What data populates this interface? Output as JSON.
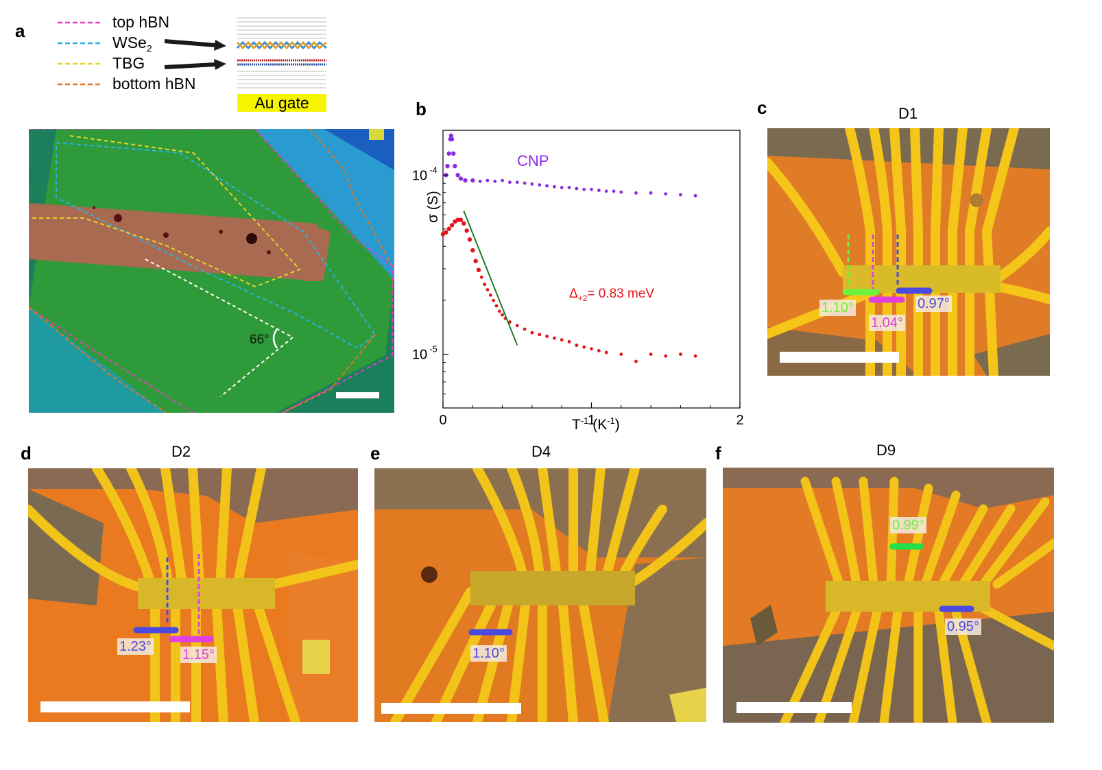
{
  "panels": {
    "a": "a",
    "b": "b",
    "c": "c",
    "d": "d",
    "e": "e",
    "f": "f"
  },
  "legend": {
    "top_hbn": "top hBN",
    "wse2_base": "WSe",
    "wse2_sub": "2",
    "tbg": "TBG",
    "bottom_hbn": "bottom hBN",
    "au_gate": "Au gate"
  },
  "colors": {
    "top_hbn": "#e23fc0",
    "wse2": "#2ab3e0",
    "tbg": "#e8d22a",
    "bottom_hbn": "#e8761e",
    "cnp_curve": "#8a2be2",
    "gap_curve": "#e3131b",
    "fit_line": "#1e7d2a"
  },
  "panel_a": {
    "angle_label": "66°"
  },
  "chart_data": {
    "type": "scatter",
    "title": "",
    "xlabel_base": "T",
    "xlabel_sup": "-1",
    "xlabel_unit": " (K",
    "xlabel_unit_sup": "-1",
    "xlabel_close": ")",
    "ylabel": "σ (S)",
    "xlim": [
      0,
      2
    ],
    "ylim_log10": [
      -5.3,
      -3.75
    ],
    "x_ticks": [
      "0",
      "1",
      "2"
    ],
    "y_ticks": [
      {
        "base": "10",
        "exp": "-4",
        "value": -4
      },
      {
        "base": "10",
        "exp": "-5",
        "value": -5
      }
    ],
    "annotations": {
      "cnp": "CNP",
      "gap_prefix": "Δ",
      "gap_sub": "+2",
      "gap_value": "= 0.83 meV"
    },
    "series": [
      {
        "name": "CNP",
        "points": [
          [
            0.02,
            -4.0
          ],
          [
            0.03,
            -3.95
          ],
          [
            0.04,
            -3.88
          ],
          [
            0.05,
            -3.8
          ],
          [
            0.055,
            -3.78
          ],
          [
            0.06,
            -3.8
          ],
          [
            0.07,
            -3.88
          ],
          [
            0.08,
            -3.95
          ],
          [
            0.1,
            -4.0
          ],
          [
            0.12,
            -4.02
          ],
          [
            0.15,
            -4.03
          ],
          [
            0.2,
            -4.03
          ],
          [
            0.25,
            -4.035
          ],
          [
            0.3,
            -4.03
          ],
          [
            0.35,
            -4.035
          ],
          [
            0.4,
            -4.03
          ],
          [
            0.45,
            -4.04
          ],
          [
            0.5,
            -4.04
          ],
          [
            0.55,
            -4.045
          ],
          [
            0.6,
            -4.05
          ],
          [
            0.65,
            -4.055
          ],
          [
            0.7,
            -4.06
          ],
          [
            0.75,
            -4.065
          ],
          [
            0.8,
            -4.07
          ],
          [
            0.85,
            -4.07
          ],
          [
            0.9,
            -4.075
          ],
          [
            0.95,
            -4.08
          ],
          [
            1.0,
            -4.08
          ],
          [
            1.05,
            -4.085
          ],
          [
            1.1,
            -4.09
          ],
          [
            1.15,
            -4.09
          ],
          [
            1.2,
            -4.095
          ],
          [
            1.3,
            -4.1
          ],
          [
            1.4,
            -4.1
          ],
          [
            1.5,
            -4.105
          ],
          [
            1.6,
            -4.11
          ],
          [
            1.7,
            -4.115
          ]
        ]
      },
      {
        "name": "Delta+2",
        "points": [
          [
            0.0,
            -4.33
          ],
          [
            0.02,
            -4.32
          ],
          [
            0.04,
            -4.3
          ],
          [
            0.06,
            -4.28
          ],
          [
            0.08,
            -4.26
          ],
          [
            0.1,
            -4.25
          ],
          [
            0.12,
            -4.25
          ],
          [
            0.14,
            -4.27
          ],
          [
            0.16,
            -4.31
          ],
          [
            0.18,
            -4.36
          ],
          [
            0.2,
            -4.42
          ],
          [
            0.22,
            -4.48
          ],
          [
            0.24,
            -4.53
          ],
          [
            0.26,
            -4.57
          ],
          [
            0.28,
            -4.61
          ],
          [
            0.3,
            -4.64
          ],
          [
            0.32,
            -4.67
          ],
          [
            0.34,
            -4.7
          ],
          [
            0.36,
            -4.73
          ],
          [
            0.38,
            -4.76
          ],
          [
            0.4,
            -4.78
          ],
          [
            0.42,
            -4.8
          ],
          [
            0.45,
            -4.82
          ],
          [
            0.5,
            -4.84
          ],
          [
            0.55,
            -4.86
          ],
          [
            0.6,
            -4.88
          ],
          [
            0.65,
            -4.89
          ],
          [
            0.7,
            -4.9
          ],
          [
            0.75,
            -4.91
          ],
          [
            0.8,
            -4.92
          ],
          [
            0.85,
            -4.93
          ],
          [
            0.9,
            -4.95
          ],
          [
            0.95,
            -4.96
          ],
          [
            1.0,
            -4.97
          ],
          [
            1.05,
            -4.98
          ],
          [
            1.1,
            -4.99
          ],
          [
            1.2,
            -5.0
          ],
          [
            1.3,
            -5.04
          ],
          [
            1.4,
            -5.0
          ],
          [
            1.5,
            -5.01
          ],
          [
            1.6,
            -5.0
          ],
          [
            1.7,
            -5.01
          ]
        ]
      }
    ],
    "fit_line": [
      [
        0.14,
        -4.2
      ],
      [
        0.5,
        -4.95
      ]
    ]
  },
  "panel_c": {
    "title": "D1",
    "labels": [
      "1.10°",
      "1.04°",
      "0.97°"
    ]
  },
  "panel_d": {
    "title": "D2",
    "labels": [
      "1.23°",
      "1.15°"
    ]
  },
  "panel_e": {
    "title": "D4",
    "labels": [
      "1.10°"
    ]
  },
  "panel_f": {
    "title": "D9",
    "labels": [
      "0.99°",
      "0.95°"
    ]
  }
}
